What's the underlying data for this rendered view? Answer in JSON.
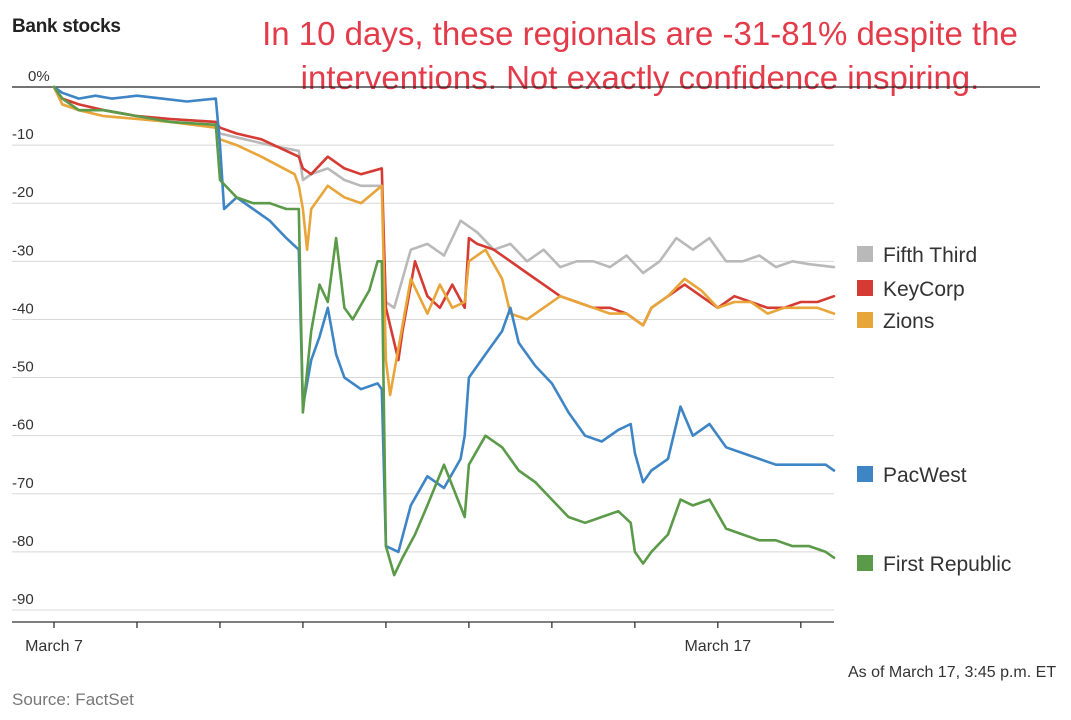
{
  "chart_title": "Bank stocks",
  "annotation": "In 10 days, these regionals are -31-81% despite the interventions. Not exactly confidence inspiring.",
  "source": "Source: FactSet",
  "as_of": "As of March 17, 3:45 p.m. ET",
  "chart_data": {
    "type": "line",
    "title": "Bank stocks",
    "ylabel": "",
    "xlabel": "",
    "ylim": [
      -90,
      0
    ],
    "xlim": [
      0,
      9.4
    ],
    "y_ticks": [
      0,
      -10,
      -20,
      -30,
      -40,
      -50,
      -60,
      -70,
      -80,
      -90
    ],
    "y_tick_labels": [
      "0%",
      "-10",
      "-20",
      "-30",
      "-40",
      "-50",
      "-60",
      "-70",
      "-80",
      "-90"
    ],
    "x_ticks": [
      0,
      1,
      2,
      3,
      4,
      5,
      6,
      7,
      8,
      9
    ],
    "x_tick_labels": [
      "March 7",
      "",
      "",
      "",
      "",
      "",
      "",
      "",
      "March 17",
      ""
    ],
    "grid": true,
    "legend_position": "right",
    "series": [
      {
        "name": "Fifth Third",
        "color": "#b9b9b9",
        "points": [
          [
            0,
            0
          ],
          [
            0.1,
            -3
          ],
          [
            0.3,
            -4
          ],
          [
            0.6,
            -4
          ],
          [
            1,
            -5
          ],
          [
            1.4,
            -5.5
          ],
          [
            1.95,
            -6
          ],
          [
            2.0,
            -8
          ],
          [
            2.3,
            -9
          ],
          [
            2.6,
            -10
          ],
          [
            2.95,
            -11
          ],
          [
            3.0,
            -16
          ],
          [
            3.1,
            -15
          ],
          [
            3.3,
            -14
          ],
          [
            3.5,
            -16
          ],
          [
            3.7,
            -17
          ],
          [
            3.95,
            -17
          ],
          [
            4.0,
            -37
          ],
          [
            4.1,
            -38
          ],
          [
            4.2,
            -33
          ],
          [
            4.3,
            -28
          ],
          [
            4.5,
            -27
          ],
          [
            4.7,
            -29
          ],
          [
            4.9,
            -23
          ],
          [
            5.1,
            -25
          ],
          [
            5.3,
            -28
          ],
          [
            5.5,
            -27
          ],
          [
            5.7,
            -30
          ],
          [
            5.9,
            -28
          ],
          [
            6.1,
            -31
          ],
          [
            6.3,
            -30
          ],
          [
            6.5,
            -30
          ],
          [
            6.7,
            -31
          ],
          [
            6.9,
            -29
          ],
          [
            7.1,
            -32
          ],
          [
            7.3,
            -30
          ],
          [
            7.5,
            -26
          ],
          [
            7.7,
            -28
          ],
          [
            7.9,
            -26
          ],
          [
            8.1,
            -30
          ],
          [
            8.3,
            -30
          ],
          [
            8.5,
            -29
          ],
          [
            8.7,
            -31
          ],
          [
            8.9,
            -30
          ],
          [
            9.1,
            -30.5
          ],
          [
            9.4,
            -31
          ]
        ]
      },
      {
        "name": "KeyCorp",
        "color": "#d63b33",
        "points": [
          [
            0,
            0
          ],
          [
            0.1,
            -2
          ],
          [
            0.3,
            -3
          ],
          [
            0.6,
            -4
          ],
          [
            1,
            -5
          ],
          [
            1.4,
            -5.5
          ],
          [
            1.95,
            -6
          ],
          [
            2.0,
            -7
          ],
          [
            2.2,
            -8
          ],
          [
            2.5,
            -9
          ],
          [
            2.95,
            -12
          ],
          [
            3.0,
            -14
          ],
          [
            3.1,
            -15
          ],
          [
            3.3,
            -12
          ],
          [
            3.5,
            -14
          ],
          [
            3.7,
            -15
          ],
          [
            3.95,
            -14
          ],
          [
            4.0,
            -38
          ],
          [
            4.15,
            -47
          ],
          [
            4.2,
            -42
          ],
          [
            4.35,
            -30
          ],
          [
            4.5,
            -36
          ],
          [
            4.65,
            -38
          ],
          [
            4.8,
            -34
          ],
          [
            4.95,
            -38
          ],
          [
            5.0,
            -26
          ],
          [
            5.1,
            -27
          ],
          [
            5.3,
            -28
          ],
          [
            5.5,
            -30
          ],
          [
            5.7,
            -32
          ],
          [
            5.9,
            -34
          ],
          [
            6.1,
            -36
          ],
          [
            6.3,
            -37
          ],
          [
            6.5,
            -38
          ],
          [
            6.7,
            -38
          ],
          [
            6.9,
            -39
          ],
          [
            7.1,
            -41
          ],
          [
            7.2,
            -38
          ],
          [
            7.4,
            -36
          ],
          [
            7.6,
            -34
          ],
          [
            7.8,
            -36
          ],
          [
            8.0,
            -38
          ],
          [
            8.2,
            -36
          ],
          [
            8.4,
            -37
          ],
          [
            8.6,
            -38
          ],
          [
            8.8,
            -38
          ],
          [
            9.0,
            -37
          ],
          [
            9.2,
            -37
          ],
          [
            9.4,
            -36
          ]
        ]
      },
      {
        "name": "Zions",
        "color": "#e8a53a",
        "points": [
          [
            0,
            0
          ],
          [
            0.1,
            -3
          ],
          [
            0.3,
            -4
          ],
          [
            0.6,
            -5
          ],
          [
            1,
            -5.5
          ],
          [
            1.4,
            -6
          ],
          [
            1.95,
            -7
          ],
          [
            2.0,
            -9
          ],
          [
            2.2,
            -10
          ],
          [
            2.5,
            -12
          ],
          [
            2.9,
            -15
          ],
          [
            2.95,
            -17
          ],
          [
            3.0,
            -21
          ],
          [
            3.05,
            -28
          ],
          [
            3.1,
            -21
          ],
          [
            3.3,
            -17
          ],
          [
            3.5,
            -19
          ],
          [
            3.7,
            -20
          ],
          [
            3.95,
            -17
          ],
          [
            4.0,
            -47
          ],
          [
            4.05,
            -53
          ],
          [
            4.15,
            -45
          ],
          [
            4.3,
            -33
          ],
          [
            4.5,
            -39
          ],
          [
            4.65,
            -34
          ],
          [
            4.8,
            -38
          ],
          [
            4.95,
            -37
          ],
          [
            5.0,
            -30
          ],
          [
            5.2,
            -28
          ],
          [
            5.4,
            -33
          ],
          [
            5.5,
            -39
          ],
          [
            5.7,
            -40
          ],
          [
            5.9,
            -38
          ],
          [
            6.1,
            -36
          ],
          [
            6.3,
            -37
          ],
          [
            6.5,
            -38
          ],
          [
            6.7,
            -39
          ],
          [
            6.9,
            -39
          ],
          [
            7.1,
            -41
          ],
          [
            7.2,
            -38
          ],
          [
            7.4,
            -36
          ],
          [
            7.6,
            -33
          ],
          [
            7.8,
            -35
          ],
          [
            8.0,
            -38
          ],
          [
            8.2,
            -37
          ],
          [
            8.4,
            -37
          ],
          [
            8.6,
            -39
          ],
          [
            8.8,
            -38
          ],
          [
            9.0,
            -38
          ],
          [
            9.2,
            -38
          ],
          [
            9.4,
            -39
          ]
        ]
      },
      {
        "name": "PacWest",
        "color": "#3e85c6",
        "points": [
          [
            0,
            0
          ],
          [
            0.1,
            -1
          ],
          [
            0.3,
            -2
          ],
          [
            0.5,
            -1.5
          ],
          [
            0.7,
            -2
          ],
          [
            1,
            -1.5
          ],
          [
            1.3,
            -2
          ],
          [
            1.6,
            -2.5
          ],
          [
            1.95,
            -2
          ],
          [
            2.0,
            -10
          ],
          [
            2.05,
            -21
          ],
          [
            2.2,
            -19
          ],
          [
            2.4,
            -21
          ],
          [
            2.6,
            -23
          ],
          [
            2.8,
            -26
          ],
          [
            2.95,
            -28
          ],
          [
            3.0,
            -55
          ],
          [
            3.1,
            -47
          ],
          [
            3.2,
            -43
          ],
          [
            3.3,
            -38
          ],
          [
            3.4,
            -46
          ],
          [
            3.5,
            -50
          ],
          [
            3.7,
            -52
          ],
          [
            3.9,
            -51
          ],
          [
            3.95,
            -52
          ],
          [
            4.0,
            -79
          ],
          [
            4.15,
            -80
          ],
          [
            4.3,
            -72
          ],
          [
            4.5,
            -67
          ],
          [
            4.7,
            -69
          ],
          [
            4.9,
            -64
          ],
          [
            4.95,
            -60
          ],
          [
            5.0,
            -50
          ],
          [
            5.2,
            -46
          ],
          [
            5.4,
            -42
          ],
          [
            5.5,
            -38
          ],
          [
            5.6,
            -44
          ],
          [
            5.8,
            -48
          ],
          [
            6.0,
            -51
          ],
          [
            6.2,
            -56
          ],
          [
            6.4,
            -60
          ],
          [
            6.6,
            -61
          ],
          [
            6.8,
            -59
          ],
          [
            6.95,
            -58
          ],
          [
            7.0,
            -63
          ],
          [
            7.1,
            -68
          ],
          [
            7.2,
            -66
          ],
          [
            7.4,
            -64
          ],
          [
            7.55,
            -55
          ],
          [
            7.7,
            -60
          ],
          [
            7.9,
            -58
          ],
          [
            8.1,
            -62
          ],
          [
            8.3,
            -63
          ],
          [
            8.5,
            -64
          ],
          [
            8.7,
            -65
          ],
          [
            8.9,
            -65
          ],
          [
            9.1,
            -65
          ],
          [
            9.3,
            -65
          ],
          [
            9.4,
            -66
          ]
        ]
      },
      {
        "name": "First Republic",
        "color": "#5a9a48",
        "points": [
          [
            0,
            0
          ],
          [
            0.1,
            -2
          ],
          [
            0.3,
            -4
          ],
          [
            0.6,
            -4
          ],
          [
            1,
            -5
          ],
          [
            1.4,
            -6
          ],
          [
            1.95,
            -6.5
          ],
          [
            2.0,
            -16
          ],
          [
            2.2,
            -19
          ],
          [
            2.4,
            -20
          ],
          [
            2.6,
            -20
          ],
          [
            2.8,
            -21
          ],
          [
            2.95,
            -21
          ],
          [
            3.0,
            -56
          ],
          [
            3.1,
            -42
          ],
          [
            3.2,
            -34
          ],
          [
            3.3,
            -37
          ],
          [
            3.4,
            -26
          ],
          [
            3.5,
            -38
          ],
          [
            3.6,
            -40
          ],
          [
            3.8,
            -35
          ],
          [
            3.9,
            -30
          ],
          [
            3.95,
            -30
          ],
          [
            4.0,
            -79
          ],
          [
            4.1,
            -84
          ],
          [
            4.2,
            -81
          ],
          [
            4.35,
            -77
          ],
          [
            4.5,
            -72
          ],
          [
            4.7,
            -65
          ],
          [
            4.95,
            -74
          ],
          [
            5.0,
            -65
          ],
          [
            5.2,
            -60
          ],
          [
            5.4,
            -62
          ],
          [
            5.6,
            -66
          ],
          [
            5.8,
            -68
          ],
          [
            6.0,
            -71
          ],
          [
            6.2,
            -74
          ],
          [
            6.4,
            -75
          ],
          [
            6.6,
            -74
          ],
          [
            6.8,
            -73
          ],
          [
            6.95,
            -75
          ],
          [
            7.0,
            -80
          ],
          [
            7.1,
            -82
          ],
          [
            7.2,
            -80
          ],
          [
            7.4,
            -77
          ],
          [
            7.55,
            -71
          ],
          [
            7.7,
            -72
          ],
          [
            7.9,
            -71
          ],
          [
            8.1,
            -76
          ],
          [
            8.3,
            -77
          ],
          [
            8.5,
            -78
          ],
          [
            8.7,
            -78
          ],
          [
            8.9,
            -79
          ],
          [
            9.1,
            -79
          ],
          [
            9.3,
            -80
          ],
          [
            9.4,
            -81
          ]
        ]
      }
    ]
  }
}
